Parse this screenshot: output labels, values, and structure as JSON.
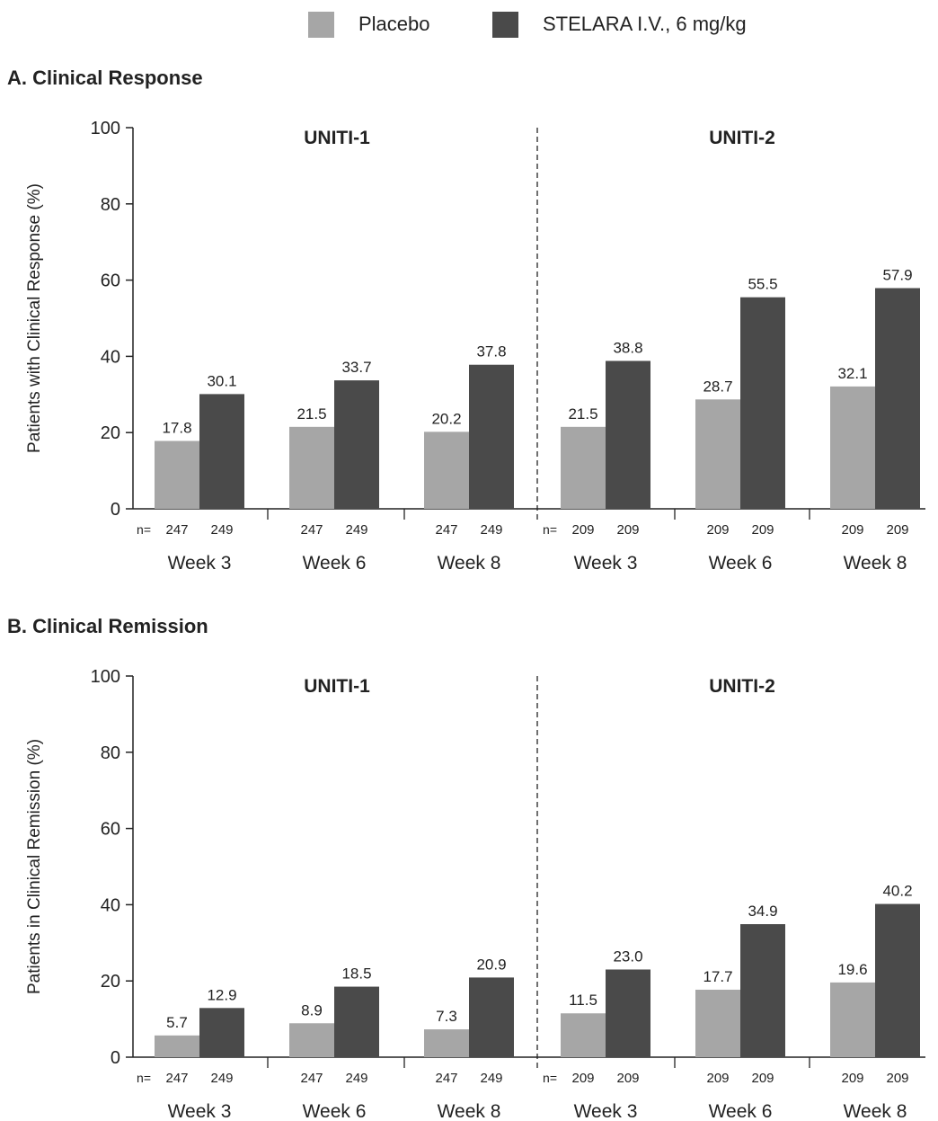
{
  "legend": [
    {
      "name": "Placebo",
      "color": "#a6a6a6"
    },
    {
      "name": "STELARA I.V., 6 mg/kg",
      "color": "#4a4a4a"
    }
  ],
  "chart_data": [
    {
      "type": "bar",
      "title": "A. Clinical Response",
      "ylabel": "Patients with Clinical Response (%)",
      "ylim": [
        0,
        100
      ],
      "yticks": [
        0,
        20,
        40,
        60,
        80,
        100
      ],
      "n_prefix": "n=",
      "groups": [
        {
          "name": "UNITI-1",
          "categories": [
            "Week 3",
            "Week 6",
            "Week 8"
          ],
          "n": [
            [
              "247",
              "249"
            ],
            [
              "247",
              "249"
            ],
            [
              "247",
              "249"
            ]
          ],
          "series": [
            {
              "name": "Placebo",
              "values": [
                17.8,
                21.5,
                20.2
              ]
            },
            {
              "name": "STELARA I.V., 6 mg/kg",
              "values": [
                30.1,
                33.7,
                37.8
              ]
            }
          ],
          "value_labels": [
            [
              "17.8",
              "30.1"
            ],
            [
              "21.5",
              "33.7"
            ],
            [
              "20.2",
              "37.8"
            ]
          ]
        },
        {
          "name": "UNITI-2",
          "categories": [
            "Week 3",
            "Week 6",
            "Week 8"
          ],
          "n": [
            [
              "209",
              "209"
            ],
            [
              "209",
              "209"
            ],
            [
              "209",
              "209"
            ]
          ],
          "series": [
            {
              "name": "Placebo",
              "values": [
                21.5,
                28.7,
                32.1
              ]
            },
            {
              "name": "STELARA I.V., 6 mg/kg",
              "values": [
                38.8,
                55.5,
                57.9
              ]
            }
          ],
          "value_labels": [
            [
              "21.5",
              "38.8"
            ],
            [
              "28.7",
              "55.5"
            ],
            [
              "32.1",
              "57.9"
            ]
          ]
        }
      ]
    },
    {
      "type": "bar",
      "title": "B. Clinical Remission",
      "ylabel": "Patients in Clinical Remission (%)",
      "ylim": [
        0,
        100
      ],
      "yticks": [
        0,
        20,
        40,
        60,
        80,
        100
      ],
      "n_prefix": "n=",
      "groups": [
        {
          "name": "UNITI-1",
          "categories": [
            "Week 3",
            "Week 6",
            "Week 8"
          ],
          "n": [
            [
              "247",
              "249"
            ],
            [
              "247",
              "249"
            ],
            [
              "247",
              "249"
            ]
          ],
          "series": [
            {
              "name": "Placebo",
              "values": [
                5.7,
                8.9,
                7.3
              ]
            },
            {
              "name": "STELARA I.V., 6 mg/kg",
              "values": [
                12.9,
                18.5,
                20.9
              ]
            }
          ],
          "value_labels": [
            [
              "5.7",
              "12.9"
            ],
            [
              "8.9",
              "18.5"
            ],
            [
              "7.3",
              "20.9"
            ]
          ]
        },
        {
          "name": "UNITI-2",
          "categories": [
            "Week 3",
            "Week 6",
            "Week 8"
          ],
          "n": [
            [
              "209",
              "209"
            ],
            [
              "209",
              "209"
            ],
            [
              "209",
              "209"
            ]
          ],
          "series": [
            {
              "name": "Placebo",
              "values": [
                11.5,
                17.7,
                19.6
              ]
            },
            {
              "name": "STELARA I.V., 6 mg/kg",
              "values": [
                23.0,
                34.9,
                40.2
              ]
            }
          ],
          "value_labels": [
            [
              "11.5",
              "23.0"
            ],
            [
              "17.7",
              "34.9"
            ],
            [
              "19.6",
              "40.2"
            ]
          ]
        }
      ]
    }
  ]
}
